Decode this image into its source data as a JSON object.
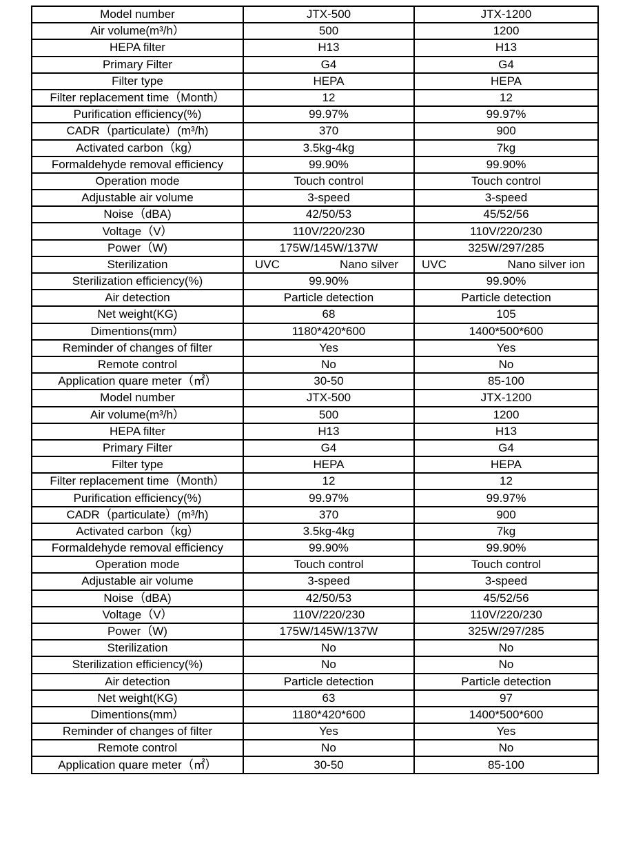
{
  "table": {
    "rows": [
      [
        "Model number",
        "JTX-500",
        "JTX-1200"
      ],
      [
        "Air volume(m³/h）",
        "500",
        "1200"
      ],
      [
        "HEPA filter",
        "H13",
        "H13"
      ],
      [
        "Primary Filter",
        "G4",
        "G4"
      ],
      [
        "Filter type",
        "HEPA",
        "HEPA"
      ],
      [
        "Filter replacement time（Month）",
        "12",
        "12"
      ],
      [
        "Purification efficiency(%)",
        "99.97%",
        "99.97%"
      ],
      [
        "CADR（particulate）(m³/h)",
        "370",
        "900"
      ],
      [
        "Activated carbon（kg）",
        "3.5kg-4kg",
        "7kg"
      ],
      [
        "Formaldehyde removal efficiency",
        "99.90%",
        "99.90%"
      ],
      [
        "Operation mode",
        "Touch control",
        "Touch control"
      ],
      [
        "Adjustable air volume",
        "3-speed",
        "3-speed"
      ],
      [
        "Noise（dBA)",
        "42/50/53",
        "45/52/56"
      ],
      [
        "Voltage（V）",
        "110V/220/230",
        "110V/220/230"
      ],
      [
        "Power（W)",
        "175W/145W/137W",
        "325W/297/285"
      ],
      [
        "Sterilization",
        [
          "UVC",
          "Nano silver"
        ],
        [
          "UVC",
          "Nano silver ion"
        ]
      ],
      [
        "Sterilization efficiency(%)",
        "99.90%",
        "99.90%"
      ],
      [
        "Air detection",
        "Particle detection",
        "Particle detection"
      ],
      [
        "Net weight(KG)",
        "68",
        "105"
      ],
      [
        "Dimentions(mm）",
        "1180*420*600",
        "1400*500*600"
      ],
      [
        "Reminder of changes of filter",
        "Yes",
        "Yes"
      ],
      [
        "Remote control",
        "No",
        "No"
      ],
      [
        "Application quare meter（㎡）",
        "30-50",
        "85-100"
      ],
      [
        "Model number",
        "JTX-500",
        "JTX-1200"
      ],
      [
        "Air volume(m³/h）",
        "500",
        "1200"
      ],
      [
        "HEPA filter",
        "H13",
        "H13"
      ],
      [
        "Primary Filter",
        "G4",
        "G4"
      ],
      [
        "Filter type",
        "HEPA",
        "HEPA"
      ],
      [
        "Filter replacement time（Month）",
        "12",
        "12"
      ],
      [
        "Purification efficiency(%)",
        "99.97%",
        "99.97%"
      ],
      [
        "CADR（particulate）(m³/h)",
        "370",
        "900"
      ],
      [
        "Activated carbon（kg）",
        "3.5kg-4kg",
        "7kg"
      ],
      [
        "Formaldehyde removal efficiency",
        "99.90%",
        "99.90%"
      ],
      [
        "Operation mode",
        "Touch control",
        "Touch control"
      ],
      [
        "Adjustable air volume",
        "3-speed",
        "3-speed"
      ],
      [
        "Noise（dBA)",
        "42/50/53",
        "45/52/56"
      ],
      [
        "Voltage（V）",
        "110V/220/230",
        "110V/220/230"
      ],
      [
        "Power（W)",
        "175W/145W/137W",
        "325W/297/285"
      ],
      [
        "Sterilization",
        "No",
        "No"
      ],
      [
        "Sterilization efficiency(%)",
        "No",
        "No"
      ],
      [
        "Air detection",
        "Particle detection",
        "Particle detection"
      ],
      [
        "Net weight(KG)",
        "63",
        "97"
      ],
      [
        "Dimentions(mm）",
        "1180*420*600",
        "1400*500*600"
      ],
      [
        "Reminder of changes of filter",
        "Yes",
        "Yes"
      ],
      [
        "Remote control",
        "No",
        "No"
      ],
      [
        "Application quare meter（㎡）",
        "30-50",
        "85-100"
      ]
    ]
  }
}
